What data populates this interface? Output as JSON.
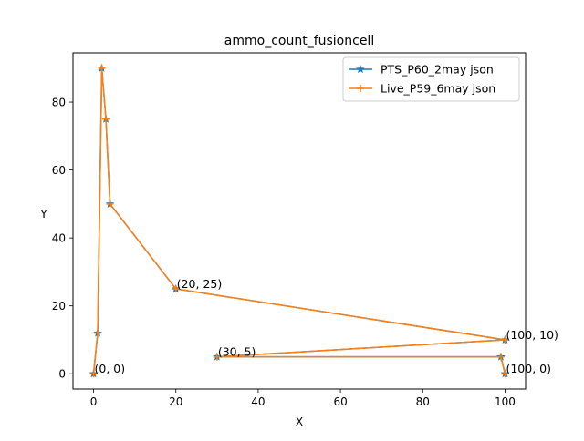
{
  "chart_data": {
    "type": "line",
    "title": "ammo_count_fusioncell",
    "xlabel": "X",
    "ylabel": "Y",
    "xlim": [
      -5,
      105
    ],
    "ylim": [
      -4.5,
      94.5
    ],
    "xticks": [
      0,
      20,
      40,
      60,
      80,
      100
    ],
    "yticks": [
      0,
      20,
      40,
      60,
      80
    ],
    "grid": false,
    "legend_position": "upper-right",
    "series": [
      {
        "name": "PTS_P60_2may json",
        "color": "#1f77b4",
        "marker": "star",
        "x": [
          0,
          1,
          2,
          3,
          4,
          20,
          100,
          30,
          99,
          100
        ],
        "y": [
          0,
          12,
          90,
          75,
          50,
          25,
          10,
          5,
          5,
          0
        ]
      },
      {
        "name": "Live_P59_6may json",
        "color": "#ff7f0e",
        "marker": "plus",
        "x": [
          0,
          1,
          2,
          3,
          4,
          20,
          100,
          30,
          99,
          100
        ],
        "y": [
          0,
          12,
          90,
          75,
          50,
          25,
          10,
          5,
          5,
          0
        ]
      }
    ],
    "annotations": [
      {
        "text": "(0, 0)",
        "x": 0,
        "y": 0
      },
      {
        "text": "(20, 25)",
        "x": 20,
        "y": 25
      },
      {
        "text": "(100, 10)",
        "x": 100,
        "y": 10
      },
      {
        "text": "(30, 5)",
        "x": 30,
        "y": 5
      },
      {
        "text": "(100, 0)",
        "x": 100,
        "y": 0
      }
    ]
  }
}
